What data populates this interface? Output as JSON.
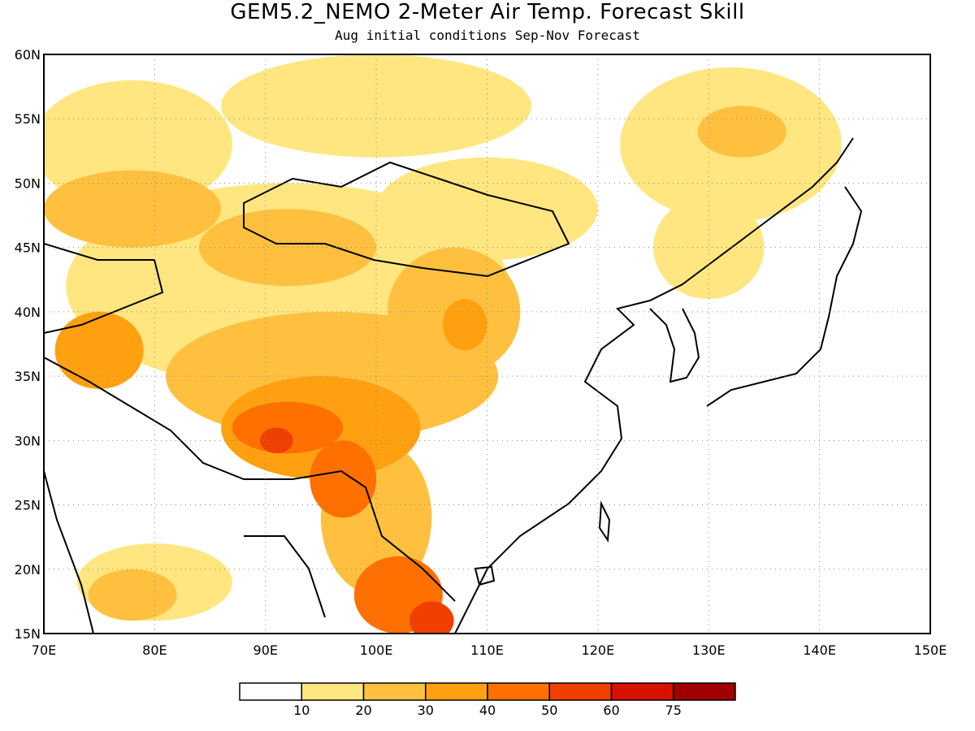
{
  "title": "GEM5.2_NEMO 2-Meter Air Temp. Forecast Skill",
  "subtitle": "Aug initial conditions  Sep-Nov Forecast",
  "map": {
    "lon_range": [
      70,
      150
    ],
    "lat_range": [
      15,
      60
    ],
    "lon_ticks": [
      "70E",
      "80E",
      "90E",
      "100E",
      "110E",
      "120E",
      "130E",
      "140E",
      "150E"
    ],
    "lat_ticks": [
      "15N",
      "20N",
      "25N",
      "30N",
      "35N",
      "40N",
      "45N",
      "50N",
      "55N",
      "60N"
    ],
    "grid": "dotted"
  },
  "colorbar": {
    "labels": [
      "10",
      "20",
      "30",
      "40",
      "50",
      "60",
      "75"
    ],
    "colors": [
      "#ffffff",
      "#ffe680",
      "#ffc040",
      "#ffa010",
      "#ff7000",
      "#f04000",
      "#d81000",
      "#a00000"
    ]
  },
  "chart_data": {
    "type": "heatmap",
    "xlabel": "",
    "ylabel": "",
    "xlim": [
      70,
      150
    ],
    "ylim": [
      15,
      60
    ],
    "levels": [
      10,
      20,
      30,
      40,
      50,
      60,
      75
    ],
    "regions": [
      {
        "level": 1,
        "lon": 78,
        "lat": 53,
        "rx": 9,
        "ry": 5
      },
      {
        "level": 1,
        "lon": 100,
        "lat": 56,
        "rx": 14,
        "ry": 4
      },
      {
        "level": 1,
        "lon": 132,
        "lat": 53,
        "rx": 10,
        "ry": 6
      },
      {
        "level": 1,
        "lon": 130,
        "lat": 45,
        "rx": 5,
        "ry": 4
      },
      {
        "level": 1,
        "lon": 110,
        "lat": 48,
        "rx": 10,
        "ry": 4
      },
      {
        "level": 1,
        "lon": 92,
        "lat": 42,
        "rx": 20,
        "ry": 8
      },
      {
        "level": 1,
        "lon": 80,
        "lat": 19,
        "rx": 7,
        "ry": 3
      },
      {
        "level": 2,
        "lon": 78,
        "lat": 48,
        "rx": 8,
        "ry": 3
      },
      {
        "level": 2,
        "lon": 92,
        "lat": 45,
        "rx": 8,
        "ry": 3
      },
      {
        "level": 2,
        "lon": 133,
        "lat": 54,
        "rx": 4,
        "ry": 2
      },
      {
        "level": 2,
        "lon": 107,
        "lat": 40,
        "rx": 6,
        "ry": 5
      },
      {
        "level": 2,
        "lon": 96,
        "lat": 35,
        "rx": 15,
        "ry": 5
      },
      {
        "level": 2,
        "lon": 100,
        "lat": 24,
        "rx": 5,
        "ry": 6
      },
      {
        "level": 2,
        "lon": 78,
        "lat": 18,
        "rx": 4,
        "ry": 2
      },
      {
        "level": 3,
        "lon": 95,
        "lat": 31,
        "rx": 9,
        "ry": 4
      },
      {
        "level": 3,
        "lon": 75,
        "lat": 37,
        "rx": 4,
        "ry": 3
      },
      {
        "level": 3,
        "lon": 108,
        "lat": 39,
        "rx": 2,
        "ry": 2
      },
      {
        "level": 4,
        "lon": 92,
        "lat": 31,
        "rx": 5,
        "ry": 2
      },
      {
        "level": 4,
        "lon": 97,
        "lat": 27,
        "rx": 3,
        "ry": 3
      },
      {
        "level": 4,
        "lon": 102,
        "lat": 18,
        "rx": 4,
        "ry": 3
      },
      {
        "level": 5,
        "lon": 91,
        "lat": 30,
        "rx": 1.5,
        "ry": 1
      },
      {
        "level": 5,
        "lon": 105,
        "lat": 16,
        "rx": 2,
        "ry": 1.5
      }
    ]
  }
}
